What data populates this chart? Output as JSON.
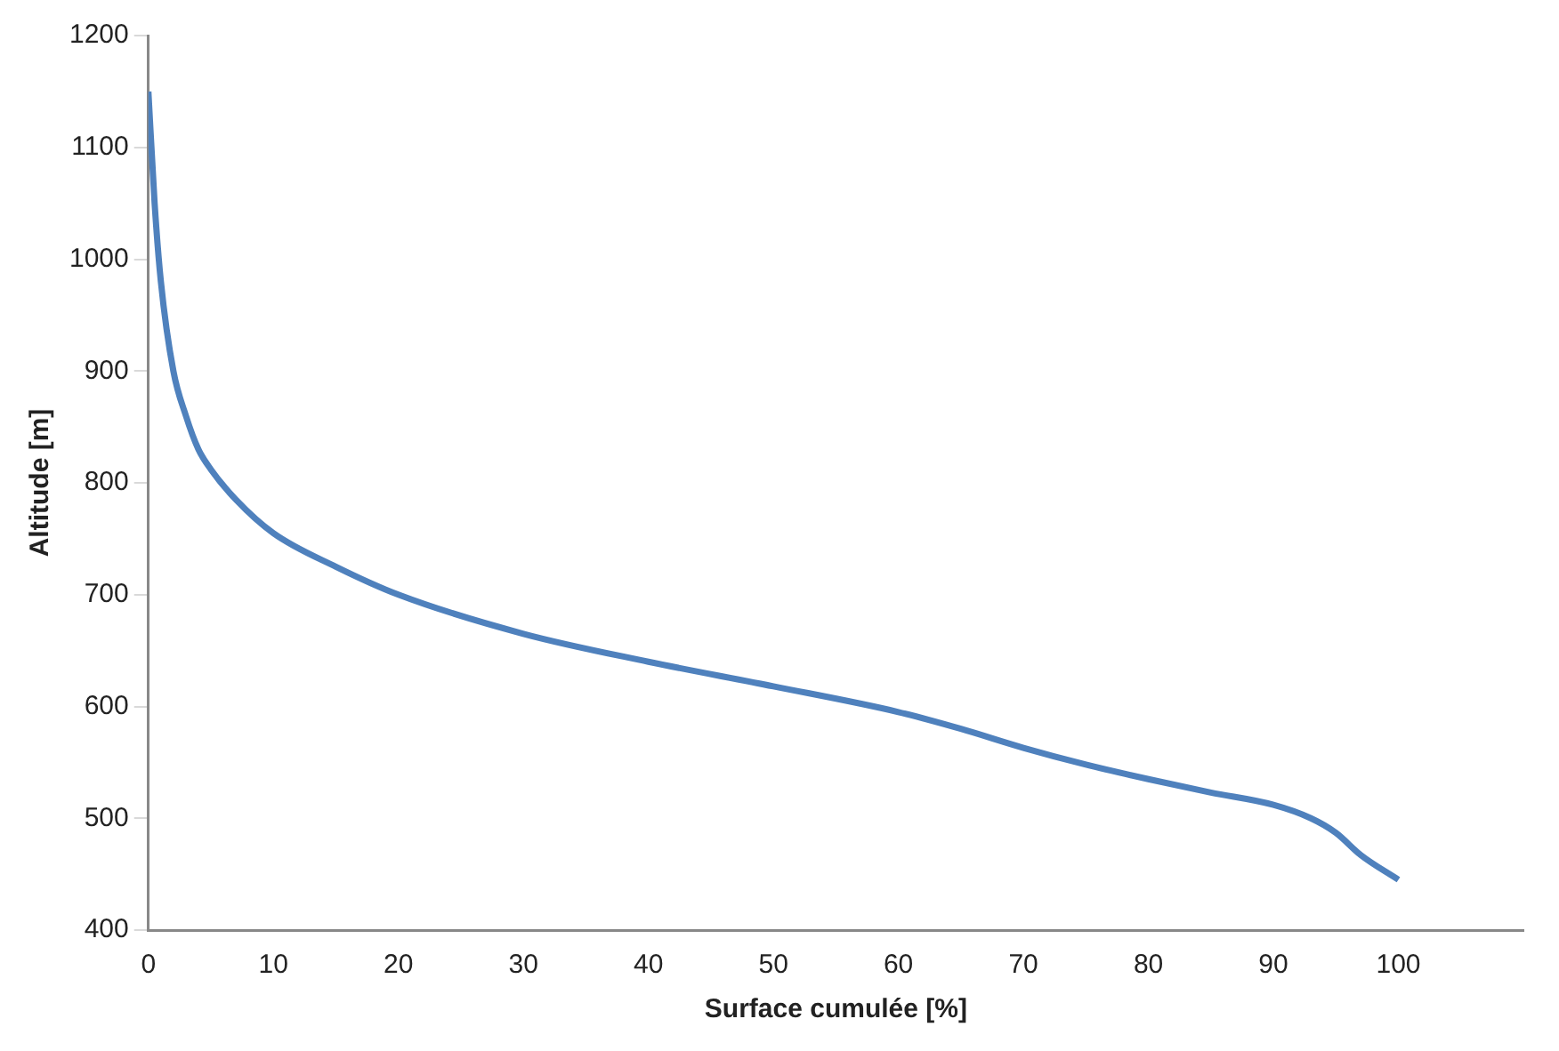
{
  "chart_data": {
    "type": "line",
    "xlabel": "Surface cumulée [%]",
    "ylabel": "Altitude [m]",
    "x": [
      0,
      0.5,
      1,
      2,
      3,
      4,
      5,
      7,
      10,
      15,
      20,
      30,
      40,
      50,
      60,
      65,
      70,
      75,
      80,
      85,
      90,
      93,
      95,
      97,
      100
    ],
    "series": [
      {
        "color": "#4f81bd",
        "values": [
          1150,
          1050,
          980,
          900,
          860,
          830,
          812,
          785,
          755,
          725,
          700,
          665,
          640,
          618,
          595,
          580,
          563,
          548,
          535,
          523,
          512,
          500,
          487,
          467,
          445
        ]
      }
    ],
    "xlim": [
      0,
      110
    ],
    "xticks": [
      0,
      10,
      20,
      30,
      40,
      50,
      60,
      70,
      80,
      90,
      100
    ],
    "ylim": [
      400,
      1200
    ],
    "yticks": [
      400,
      500,
      600,
      700,
      800,
      900,
      1000,
      1100,
      1200
    ],
    "grid": false,
    "legend": false,
    "marker": "none",
    "line_style": "solid"
  }
}
